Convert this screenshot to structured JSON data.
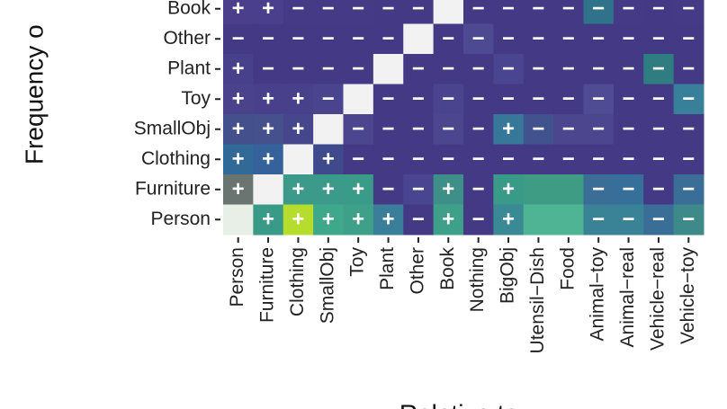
{
  "chart_data": {
    "type": "heatmap",
    "ylabel": "Frequency o",
    "xlabel": "Relative to",
    "columns": [
      "Person",
      "Furniture",
      "Clothing",
      "SmallObj",
      "Toy",
      "Plant",
      "Other",
      "Book",
      "Nothing",
      "BigObj",
      "Utensil−Dish",
      "Food",
      "Animal−toy",
      "Animal−real",
      "Vehicle−real",
      "Vehicle−toy"
    ],
    "rows": [
      "Book",
      "Other",
      "Plant",
      "Toy",
      "SmallObj",
      "Clothing",
      "Furniture",
      "Person"
    ],
    "signs": [
      [
        "+",
        "+",
        "−",
        "−",
        "−",
        "−",
        "−",
        null,
        "−",
        "−",
        "−",
        "−",
        "−",
        "−",
        "−",
        "−"
      ],
      [
        "−",
        "−",
        "−",
        "−",
        "−",
        "−",
        null,
        "−",
        "−",
        "−",
        "−",
        "−",
        "−",
        "−",
        "−",
        "−"
      ],
      [
        "+",
        "−",
        "−",
        "−",
        "−",
        null,
        "−",
        "−",
        "−",
        "−",
        "−",
        "−",
        "−",
        "−",
        "−",
        "−"
      ],
      [
        "+",
        "+",
        "+",
        "−",
        null,
        "−",
        "−",
        "−",
        "−",
        "−",
        "−",
        "−",
        "−",
        "−",
        "−",
        "−"
      ],
      [
        "+",
        "+",
        "+",
        null,
        "−",
        "−",
        "−",
        "−",
        "−",
        "+",
        "−",
        "−",
        "−",
        "−",
        "−",
        "−"
      ],
      [
        "+",
        "+",
        null,
        "+",
        "−",
        "−",
        "−",
        "−",
        "−",
        "−",
        "−",
        "−",
        "−",
        "−",
        "−",
        "−"
      ],
      [
        "+",
        null,
        "+",
        "+",
        "+",
        "−",
        "−",
        "+",
        "−",
        "+",
        null,
        null,
        "−",
        "−",
        "−",
        "−"
      ],
      [
        null,
        "+",
        "+",
        "+",
        "+",
        "+",
        "−",
        "+",
        "−",
        "+",
        null,
        null,
        "−",
        "−",
        "−",
        "−"
      ]
    ],
    "colors": [
      [
        "#4b3f8c",
        "#4a3f8c",
        "#453a86",
        "#453a86",
        "#453a86",
        "#443984",
        "#443984",
        "#f2f2f2",
        "#443984",
        "#443984",
        "#443984",
        "#443984",
        "#31728b",
        "#453a86",
        "#443984",
        "#453a86"
      ],
      [
        "#443984",
        "#443984",
        "#443984",
        "#443984",
        "#443984",
        "#443984",
        "#f2f2f2",
        "#443984",
        "#4d4a92",
        "#443984",
        "#443984",
        "#443984",
        "#443984",
        "#443984",
        "#443984",
        "#443984"
      ],
      [
        "#47408a",
        "#443984",
        "#443984",
        "#443984",
        "#443984",
        "#f2f2f2",
        "#443984",
        "#443984",
        "#443984",
        "#4a4590",
        "#443984",
        "#443984",
        "#443984",
        "#443984",
        "#2f7d80",
        "#443984"
      ],
      [
        "#4a438c",
        "#48408a",
        "#47408a",
        "#4a448e",
        "#f2f2f2",
        "#443984",
        "#443984",
        "#4a448e",
        "#443984",
        "#443984",
        "#443984",
        "#443984",
        "#4f4c93",
        "#443984",
        "#443984",
        "#38809a"
      ],
      [
        "#44508c",
        "#45508c",
        "#46468c",
        "#f2f2f2",
        "#4c468e",
        "#443984",
        "#443984",
        "#4c468e",
        "#443984",
        "#37779a",
        "#42528e",
        "#4b468e",
        "#4b468e",
        "#443984",
        "#443984",
        "#443984"
      ],
      [
        "#316a96",
        "#35629a",
        "#f2f2f2",
        "#3f4a8c",
        "#443984",
        "#443984",
        "#443984",
        "#443984",
        "#443984",
        "#443984",
        "#443984",
        "#443984",
        "#443984",
        "#443984",
        "#443984",
        "#443984"
      ],
      [
        "#6a7470",
        "#f2f2f2",
        "#3c9a8a",
        "#3b9a8a",
        "#3a9b88",
        "#443984",
        "#4a4590",
        "#3e8f88",
        "#443984",
        "#3a9a88",
        "#3e9b84",
        "#3e9b84",
        "#3a6e96",
        "#36709a",
        "#443984",
        "#3a6e96"
      ],
      [
        "#e8efe6",
        "#3a9a88",
        "#b6dc2e",
        "#3fa88a",
        "#3fa08a",
        "#3a7e99",
        "#443984",
        "#3fa08a",
        "#443984",
        "#3a8a96",
        "#4eb494",
        "#4eb494",
        "#3a8296",
        "#3a8296",
        "#3a6e96",
        "#3e8a8a"
      ]
    ]
  }
}
